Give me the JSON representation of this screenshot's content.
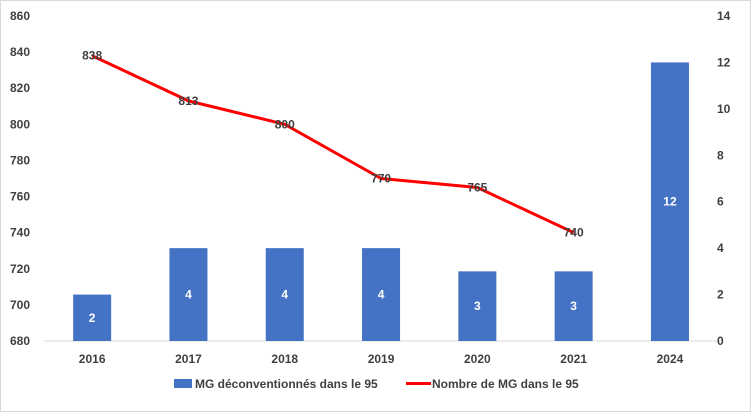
{
  "chart_data": {
    "type": "bar+line",
    "categories": [
      "2016",
      "2017",
      "2018",
      "2019",
      "2020",
      "2021",
      "2024"
    ],
    "series": [
      {
        "name": "MG déconventionnés dans le 95",
        "type": "bar",
        "axis": "right",
        "values": [
          2,
          4,
          4,
          4,
          3,
          3,
          12
        ],
        "labels": [
          "2",
          "4",
          "4",
          "4",
          "3",
          "3",
          "12"
        ],
        "color": "#4472c4"
      },
      {
        "name": "Nombre de MG dans le 95",
        "type": "line",
        "axis": "left",
        "values": [
          838,
          813,
          800,
          770,
          765,
          740,
          null
        ],
        "labels": [
          "838",
          "813",
          "800",
          "770",
          "765",
          "740",
          ""
        ],
        "color": "#ff0000"
      }
    ],
    "y_left": {
      "min": 680,
      "max": 860,
      "step": 20,
      "ticks": [
        "680",
        "700",
        "720",
        "740",
        "760",
        "780",
        "800",
        "820",
        "840",
        "860"
      ]
    },
    "y_right": {
      "min": 0,
      "max": 14,
      "step": 2,
      "ticks": [
        "0",
        "2",
        "4",
        "6",
        "8",
        "10",
        "12",
        "14"
      ]
    },
    "grid": false,
    "legend_position": "bottom"
  }
}
